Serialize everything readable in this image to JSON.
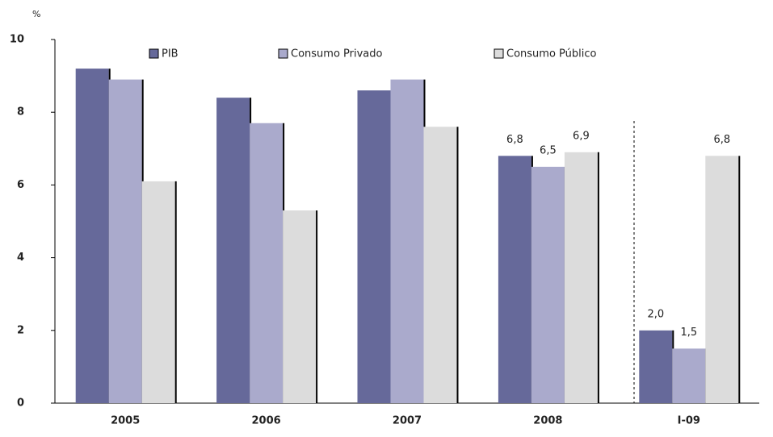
{
  "chart_data": {
    "type": "bar",
    "y_label": "%",
    "categories": [
      "2005",
      "2006",
      "2007",
      "2008",
      "I-09"
    ],
    "series": [
      {
        "name": "PIB",
        "color": "#66699a",
        "values": [
          9.2,
          8.4,
          8.6,
          6.8,
          2.0
        ],
        "value_labels": [
          null,
          null,
          null,
          "6,8",
          "2,0"
        ]
      },
      {
        "name": "Consumo Privado",
        "color": "#aaaacc",
        "values": [
          8.9,
          7.7,
          8.9,
          6.5,
          1.5
        ],
        "value_labels": [
          null,
          null,
          null,
          "6,5",
          "1,5"
        ]
      },
      {
        "name": "Consumo Público",
        "color": "#dcdcdc",
        "values": [
          6.1,
          5.3,
          7.6,
          6.9,
          6.8
        ],
        "value_labels": [
          null,
          null,
          null,
          "6,9",
          "6,8"
        ]
      }
    ],
    "ylim": [
      0,
      10
    ],
    "yticks": [
      0,
      2,
      4,
      6,
      8,
      10
    ],
    "grid": false
  }
}
